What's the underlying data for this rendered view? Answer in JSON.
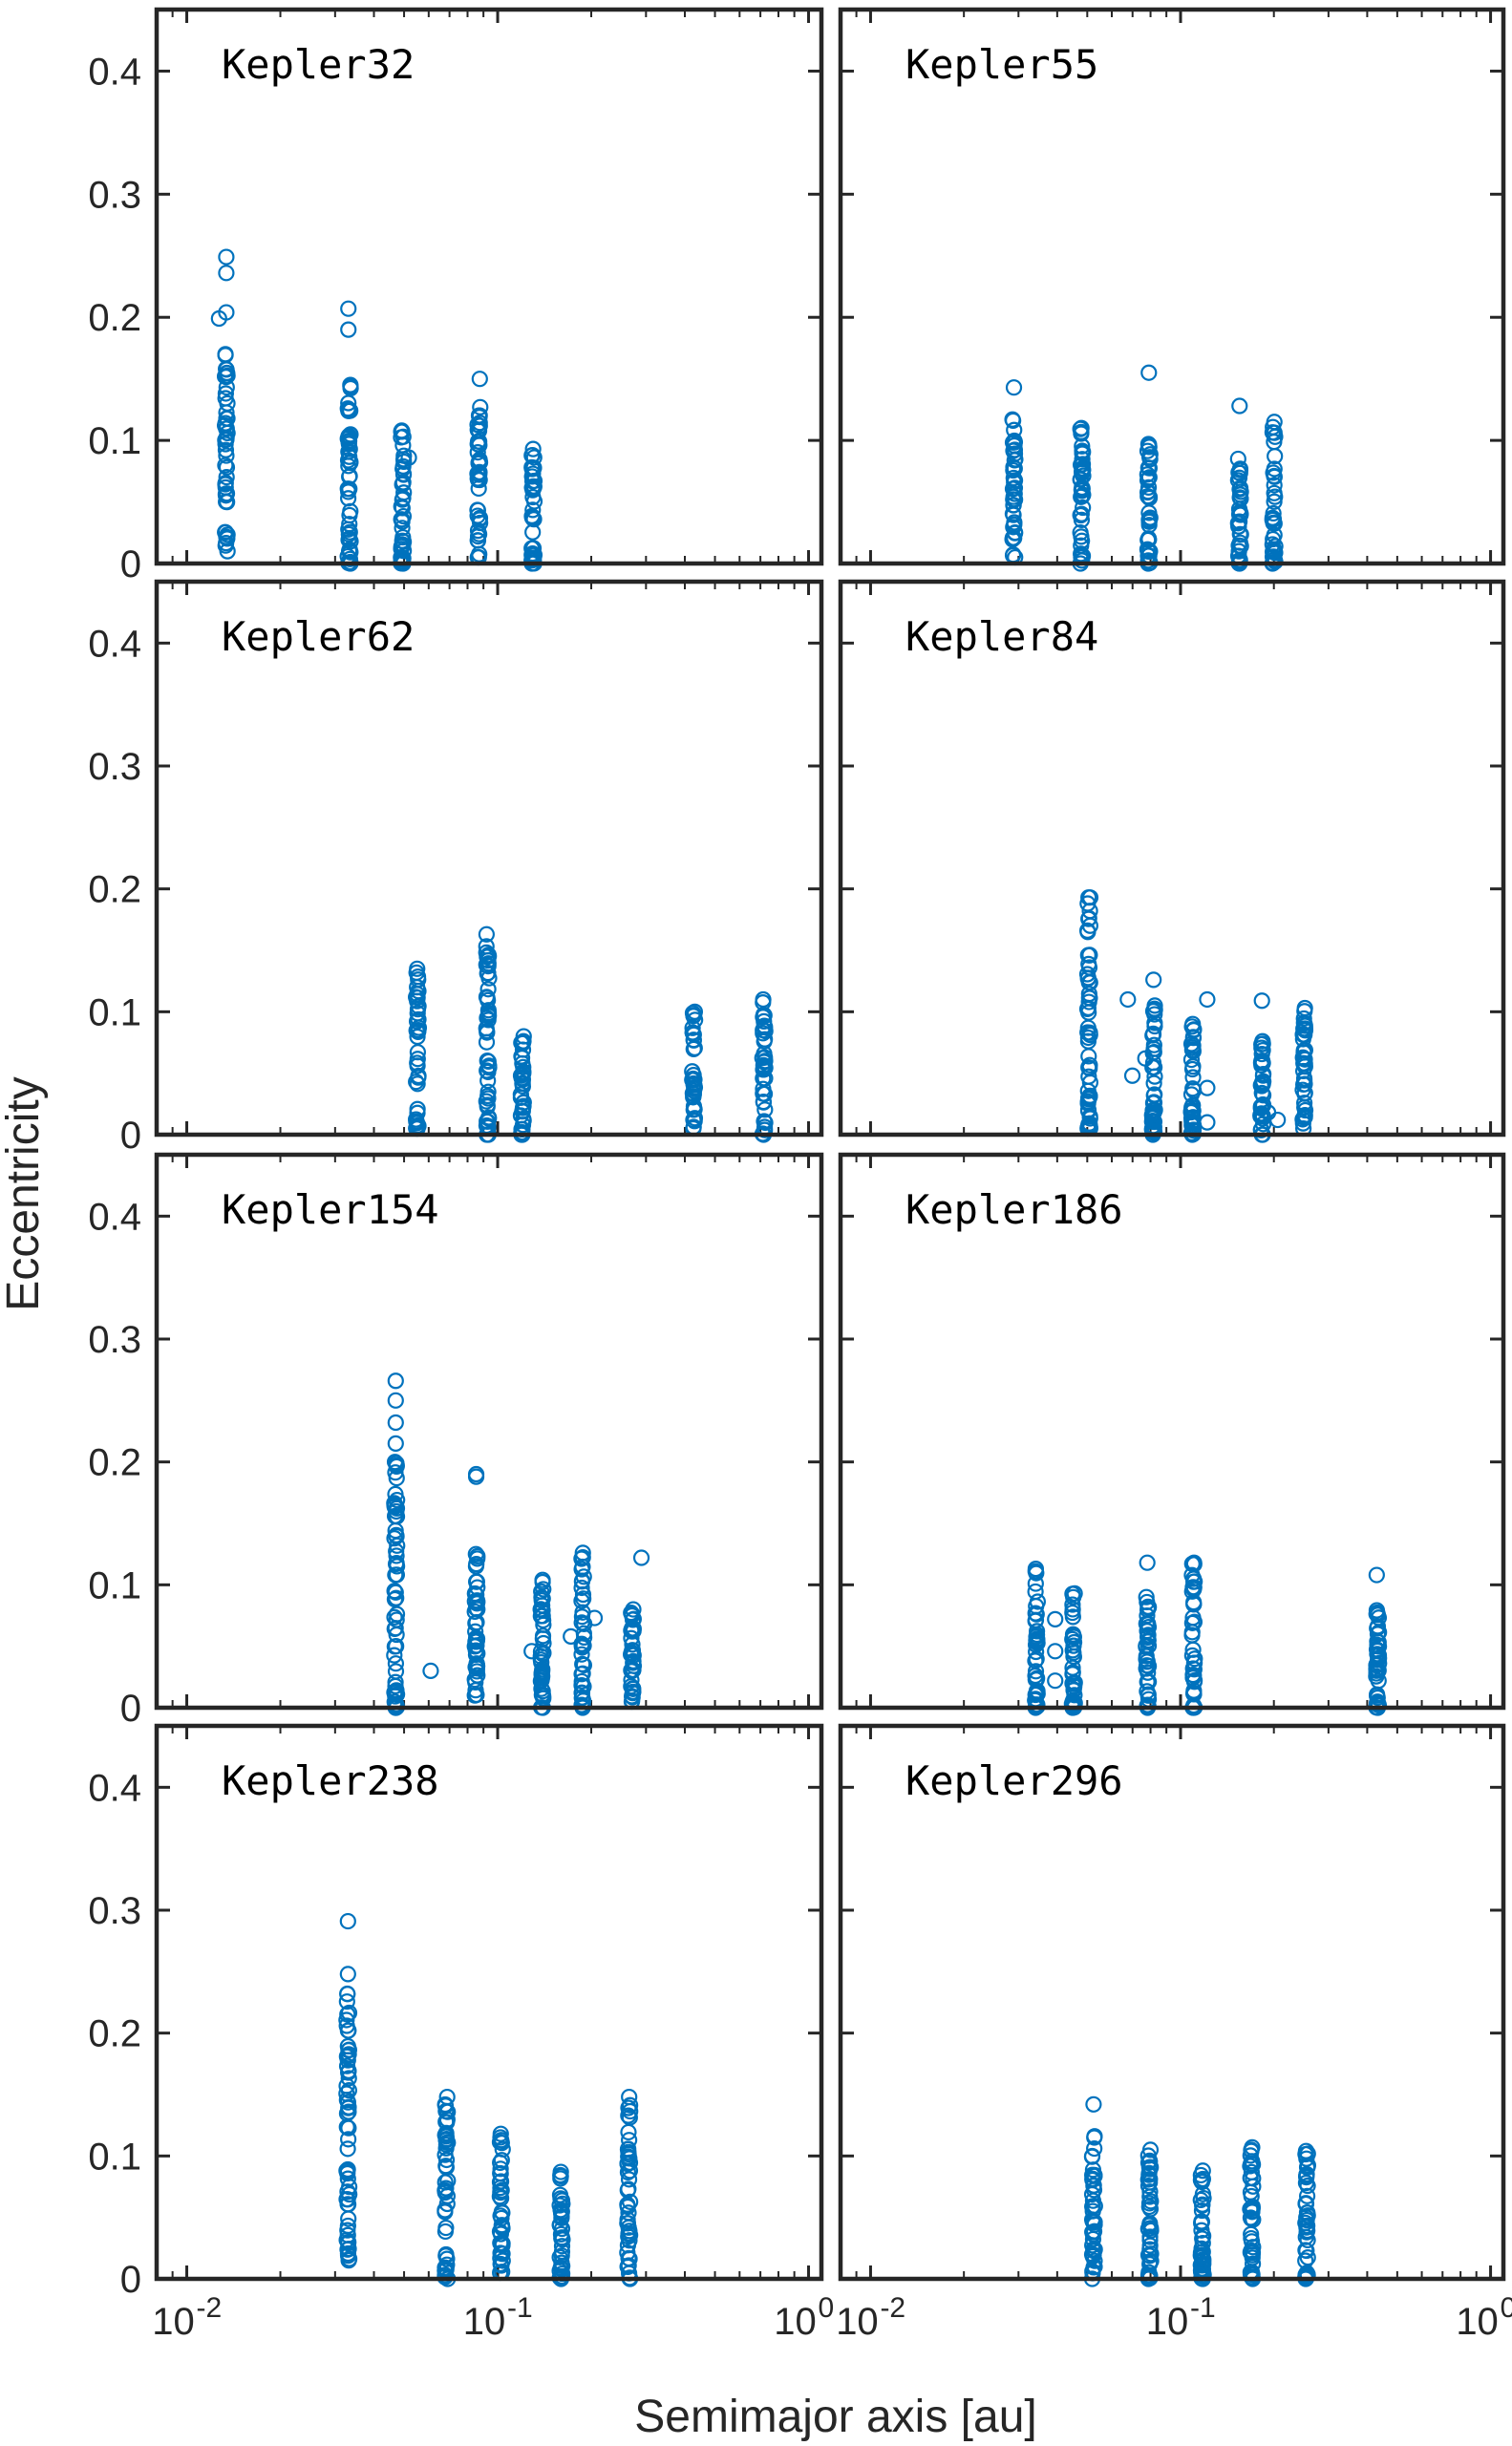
{
  "chart_data": {
    "type": "scatter",
    "layout": "4x2 small multiples",
    "xlabel": "Semimajor axis [au]",
    "ylabel": "Eccentricity",
    "xscale": "log",
    "xlim": [
      0.008,
      1.1
    ],
    "ylim": [
      0,
      0.45
    ],
    "yticks": [
      0,
      0.1,
      0.2,
      0.3,
      0.4
    ],
    "ytick_labels": [
      "0",
      "0.1",
      "0.2",
      "0.3",
      "0.4"
    ],
    "xticks": [
      0.01,
      0.1,
      1
    ],
    "xtick_labels": [
      [
        "10",
        "-2"
      ],
      [
        "10",
        "-1"
      ],
      [
        "10",
        "0"
      ]
    ],
    "marker_color": "#0072BD",
    "marker": "open circle",
    "panels": [
      {
        "name": "Kepler32",
        "planets": [
          {
            "a": 0.0134,
            "emin": 0.01,
            "emax": 0.17,
            "n": 48,
            "outliers": [
              [
                0.0127,
                0.199
              ],
              [
                0.0134,
                0.204
              ],
              [
                0.0134,
                0.236
              ],
              [
                0.0134,
                0.249
              ]
            ]
          },
          {
            "a": 0.0333,
            "emin": 0.0,
            "emax": 0.145,
            "n": 48,
            "outliers": [
              [
                0.0331,
                0.19
              ],
              [
                0.0331,
                0.207
              ]
            ]
          },
          {
            "a": 0.0494,
            "emin": 0.0,
            "emax": 0.108,
            "n": 42,
            "outliers": [
              [
                0.0518,
                0.086
              ]
            ]
          },
          {
            "a": 0.087,
            "emin": 0.005,
            "emax": 0.127,
            "n": 42,
            "outliers": [
              [
                0.0876,
                0.15
              ]
            ]
          },
          {
            "a": 0.13,
            "emin": 0.0,
            "emax": 0.093,
            "n": 36,
            "outliers": []
          }
        ]
      },
      {
        "name": "Kepler55",
        "planets": [
          {
            "a": 0.029,
            "emin": 0.005,
            "emax": 0.117,
            "n": 42,
            "outliers": [
              [
                0.029,
                0.143
              ]
            ]
          },
          {
            "a": 0.048,
            "emin": 0.0,
            "emax": 0.11,
            "n": 42,
            "outliers": []
          },
          {
            "a": 0.079,
            "emin": 0.0,
            "emax": 0.097,
            "n": 40,
            "outliers": [
              [
                0.079,
                0.155
              ]
            ]
          },
          {
            "a": 0.155,
            "emin": 0.0,
            "emax": 0.085,
            "n": 36,
            "outliers": [
              [
                0.155,
                0.128
              ]
            ]
          },
          {
            "a": 0.2,
            "emin": 0.0,
            "emax": 0.115,
            "n": 40,
            "outliers": []
          }
        ]
      },
      {
        "name": "Kepler62",
        "planets": [
          {
            "a": 0.0552,
            "emin": 0.005,
            "emax": 0.135,
            "n": 44,
            "outliers": []
          },
          {
            "a": 0.0929,
            "emin": 0.0,
            "emax": 0.163,
            "n": 50,
            "outliers": []
          },
          {
            "a": 0.12,
            "emin": 0.0,
            "emax": 0.08,
            "n": 38,
            "outliers": []
          },
          {
            "a": 0.427,
            "emin": 0.005,
            "emax": 0.1,
            "n": 38,
            "outliers": []
          },
          {
            "a": 0.718,
            "emin": 0.0,
            "emax": 0.11,
            "n": 40,
            "outliers": []
          }
        ]
      },
      {
        "name": "Kepler84",
        "planets": [
          {
            "a": 0.0506,
            "emin": 0.005,
            "emax": 0.193,
            "n": 56,
            "outliers": []
          },
          {
            "a": 0.0818,
            "emin": 0.0,
            "emax": 0.105,
            "n": 44,
            "outliers": [
              [
                0.0676,
                0.11
              ],
              [
                0.0699,
                0.048
              ],
              [
                0.077,
                0.062
              ],
              [
                0.0818,
                0.126
              ]
            ]
          },
          {
            "a": 0.1093,
            "emin": 0.0,
            "emax": 0.09,
            "n": 40,
            "outliers": [
              [
                0.1219,
                0.11
              ],
              [
                0.1219,
                0.038
              ],
              [
                0.1219,
                0.01
              ]
            ]
          },
          {
            "a": 0.183,
            "emin": 0.0,
            "emax": 0.076,
            "n": 36,
            "outliers": [
              [
                0.183,
                0.109
              ],
              [
                0.2057,
                0.012
              ],
              [
                0.1915,
                0.018
              ]
            ]
          },
          {
            "a": 0.25,
            "emin": 0.005,
            "emax": 0.103,
            "n": 40,
            "outliers": []
          }
        ]
      },
      {
        "name": "Kepler154",
        "planets": [
          {
            "a": 0.047,
            "emin": 0.0,
            "emax": 0.2,
            "n": 58,
            "outliers": [
              [
                0.047,
                0.215
              ],
              [
                0.047,
                0.232
              ],
              [
                0.047,
                0.25
              ],
              [
                0.047,
                0.266
              ],
              [
                0.0609,
                0.03
              ]
            ]
          },
          {
            "a": 0.0853,
            "emin": 0.01,
            "emax": 0.125,
            "n": 46,
            "outliers": [
              [
                0.0853,
                0.19
              ],
              [
                0.0853,
                0.188
              ]
            ]
          },
          {
            "a": 0.139,
            "emin": 0.0,
            "emax": 0.104,
            "n": 40,
            "outliers": [
              [
                0.1287,
                0.046
              ]
            ]
          },
          {
            "a": 0.188,
            "emin": 0.0,
            "emax": 0.126,
            "n": 42,
            "outliers": [
              [
                0.172,
                0.058
              ],
              [
                0.205,
                0.073
              ]
            ]
          },
          {
            "a": 0.271,
            "emin": 0.005,
            "emax": 0.08,
            "n": 38,
            "outliers": [
              [
                0.29,
                0.122
              ]
            ]
          }
        ]
      },
      {
        "name": "Kepler186",
        "planets": [
          {
            "a": 0.0343,
            "emin": 0.0,
            "emax": 0.113,
            "n": 42,
            "outliers": [
              [
                0.0394,
                0.072
              ],
              [
                0.0394,
                0.046
              ],
              [
                0.0394,
                0.022
              ]
            ]
          },
          {
            "a": 0.0451,
            "emin": 0.0,
            "emax": 0.093,
            "n": 40,
            "outliers": []
          },
          {
            "a": 0.0781,
            "emin": 0.0,
            "emax": 0.09,
            "n": 40,
            "outliers": [
              [
                0.0781,
                0.118
              ]
            ]
          },
          {
            "a": 0.11,
            "emin": 0.0,
            "emax": 0.118,
            "n": 40,
            "outliers": []
          },
          {
            "a": 0.432,
            "emin": 0.0,
            "emax": 0.108,
            "n": 40,
            "outliers": []
          }
        ]
      },
      {
        "name": "Kepler238",
        "planets": [
          {
            "a": 0.033,
            "emin": 0.015,
            "emax": 0.232,
            "n": 58,
            "outliers": [
              [
                0.033,
                0.248
              ],
              [
                0.033,
                0.291
              ]
            ]
          },
          {
            "a": 0.0684,
            "emin": 0.0,
            "emax": 0.148,
            "n": 46,
            "outliers": []
          },
          {
            "a": 0.1027,
            "emin": 0.005,
            "emax": 0.118,
            "n": 44,
            "outliers": []
          },
          {
            "a": 0.16,
            "emin": 0.0,
            "emax": 0.087,
            "n": 36,
            "outliers": []
          },
          {
            "a": 0.264,
            "emin": 0.0,
            "emax": 0.148,
            "n": 46,
            "outliers": []
          }
        ]
      },
      {
        "name": "Kepler296",
        "planets": [
          {
            "a": 0.0524,
            "emin": 0.0,
            "emax": 0.116,
            "n": 44,
            "outliers": [
              [
                0.0524,
                0.142
              ]
            ]
          },
          {
            "a": 0.0795,
            "emin": 0.0,
            "emax": 0.105,
            "n": 42,
            "outliers": []
          },
          {
            "a": 0.1175,
            "emin": 0.0,
            "emax": 0.088,
            "n": 40,
            "outliers": []
          },
          {
            "a": 0.1695,
            "emin": 0.0,
            "emax": 0.107,
            "n": 42,
            "outliers": []
          },
          {
            "a": 0.255,
            "emin": 0.0,
            "emax": 0.104,
            "n": 42,
            "outliers": []
          }
        ]
      }
    ]
  }
}
